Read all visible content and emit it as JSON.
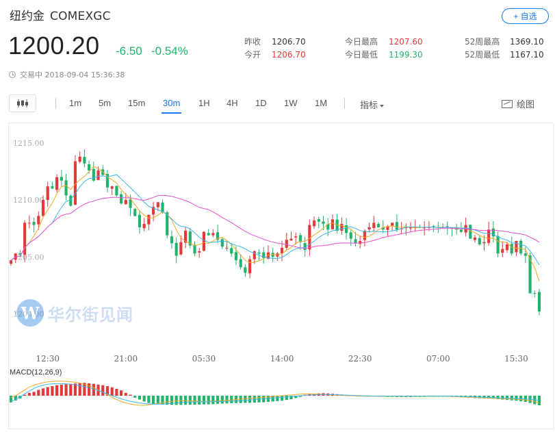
{
  "header": {
    "title": "纽约金",
    "code": "COMEXGC",
    "watch_label": "+ 自选"
  },
  "quote": {
    "price": "1200.20",
    "change": "-6.50",
    "change_pct": "-0.54%",
    "status": "交易中 2018-09-04 15:36:38"
  },
  "stats": [
    {
      "label": "昨收",
      "value": "1206.70",
      "color": "#333333"
    },
    {
      "label": "今开",
      "value": "1206.70",
      "color": "#e23a3a"
    },
    {
      "label": "今日最高",
      "value": "1207.60",
      "color": "#e23a3a"
    },
    {
      "label": "今日最低",
      "value": "1199.30",
      "color": "#21b36b"
    },
    {
      "label": "52周最高",
      "value": "1369.10",
      "color": "#333333"
    },
    {
      "label": "52周最低",
      "value": "1167.10",
      "color": "#333333"
    }
  ],
  "toolbar": {
    "periods": [
      "1m",
      "5m",
      "15m",
      "30m",
      "1H",
      "4H",
      "1D",
      "1W",
      "1M"
    ],
    "active_period": "30m",
    "indicator_label": "指标",
    "draw_label": "绘图"
  },
  "watermark": {
    "logo_letter": "W",
    "text": "华尔街见闻"
  },
  "colors": {
    "up": "#e23a3a",
    "down": "#21b36b",
    "accent": "#1478f0",
    "ma1": "#f5a623",
    "ma2": "#3ab6ea",
    "ma3": "#e94ecb"
  },
  "chart_data": {
    "type": "candlestick",
    "y_ticks": [
      "1215.00",
      "1210.00",
      "1205.00",
      "1200.00"
    ],
    "y_tick_values": [
      1215,
      1210,
      1205,
      1200
    ],
    "ylim": [
      1197.5,
      1216.5
    ],
    "x_ticks": [
      "12:30",
      "21:00",
      "05:30",
      "14:00",
      "22:30",
      "07:00",
      "15:30"
    ],
    "x_tick_index": [
      8,
      25,
      42,
      59,
      76,
      93,
      110
    ],
    "closes": [
      1204.7,
      1205.3,
      1205.2,
      1208.0,
      1208.0,
      1207.8,
      1208.6,
      1210.0,
      1211.2,
      1211.0,
      1212.0,
      1211.7,
      1210.4,
      1209.5,
      1213.4,
      1213.8,
      1213.2,
      1212.6,
      1211.7,
      1212.6,
      1212.2,
      1211.1,
      1211.2,
      1210.4,
      1209.7,
      1210.0,
      1209.3,
      1208.6,
      1207.6,
      1207.9,
      1208.7,
      1209.4,
      1209.8,
      1208.9,
      1206.9,
      1206.2,
      1205.1,
      1206.3,
      1207.3,
      1206.0,
      1205.3,
      1205.5,
      1207.2,
      1206.9,
      1207.1,
      1206.5,
      1205.9,
      1205.8,
      1205.3,
      1204.7,
      1204.1,
      1203.6,
      1204.8,
      1205.5,
      1205.3,
      1204.9,
      1205.4,
      1205.0,
      1205.3,
      1205.8,
      1206.5,
      1206.6,
      1206.8,
      1206.3,
      1205.6,
      1207.8,
      1208.2,
      1208.1,
      1207.9,
      1207.4,
      1208.3,
      1207.3,
      1207.9,
      1207.1,
      1206.6,
      1206.2,
      1206.4,
      1207.3,
      1207.6,
      1208.0,
      1207.6,
      1207.4,
      1207.7,
      1208.0,
      1207.4,
      1207.5,
      1207.6,
      1207.6,
      1207.6,
      1207.6,
      1207.6,
      1207.6,
      1207.6,
      1207.6,
      1207.6,
      1207.6,
      1207.5,
      1207.4,
      1207.2,
      1207.8,
      1206.6,
      1206.7,
      1206.1,
      1206.3,
      1207.4,
      1206.8,
      1205.3,
      1205.7,
      1206.1,
      1205.3,
      1206.4,
      1205.3,
      1205.1,
      1201.8,
      1201.8,
      1200.2
    ],
    "ma_periods": [
      5,
      10,
      30
    ],
    "macd_label": "MACD(12,26,9)",
    "macd_hist": [
      -0.35,
      -0.25,
      -0.15,
      0.05,
      0.15,
      0.2,
      0.3,
      0.38,
      0.45,
      0.5,
      0.55,
      0.58,
      0.6,
      0.62,
      0.64,
      0.66,
      0.67,
      0.65,
      0.62,
      0.58,
      0.55,
      0.5,
      0.44,
      0.36,
      0.28,
      0.15,
      0.05,
      -0.1,
      -0.2,
      -0.3,
      -0.38,
      -0.42,
      -0.45,
      -0.46,
      -0.47,
      -0.47,
      -0.48,
      -0.48,
      -0.47,
      -0.47,
      -0.47,
      -0.46,
      -0.45,
      -0.45,
      -0.44,
      -0.42,
      -0.41,
      -0.4,
      -0.39,
      -0.38,
      -0.38,
      -0.37,
      -0.37,
      -0.36,
      -0.35,
      -0.34,
      -0.32,
      -0.3,
      -0.28,
      -0.26,
      -0.22,
      -0.18,
      -0.12,
      -0.06,
      0.05,
      0.08,
      0.1,
      0.12,
      0.13,
      0.12,
      0.1,
      0.08,
      0.06,
      0.04,
      0.03,
      0.02,
      0.01,
      0.0,
      -0.02,
      -0.03,
      -0.04,
      -0.05,
      -0.06,
      -0.06,
      -0.07,
      -0.07,
      -0.07,
      -0.07,
      -0.06,
      -0.06,
      -0.06,
      -0.05,
      -0.05,
      -0.05,
      -0.05,
      -0.05,
      -0.06,
      -0.07,
      -0.08,
      -0.09,
      -0.1,
      -0.12,
      -0.13,
      -0.14,
      -0.15,
      -0.16,
      -0.18,
      -0.2,
      -0.22,
      -0.24,
      -0.26,
      -0.29,
      -0.32,
      -0.38,
      -0.44,
      -0.5
    ],
    "macd_dif": [
      -0.1,
      0.0,
      0.15,
      0.3,
      0.45,
      0.55,
      0.62,
      0.68,
      0.72,
      0.74,
      0.76,
      0.76,
      0.75,
      0.73,
      0.7,
      0.66,
      0.6,
      0.52,
      0.42,
      0.3,
      0.18,
      0.05,
      -0.08,
      -0.2,
      -0.3,
      -0.38,
      -0.44,
      -0.48,
      -0.5,
      -0.5,
      -0.48,
      -0.44,
      -0.4,
      -0.36,
      -0.32,
      -0.29,
      -0.27,
      -0.26,
      -0.26,
      -0.27,
      -0.28,
      -0.29,
      -0.3,
      -0.3,
      -0.29,
      -0.28,
      -0.26,
      -0.24,
      -0.22,
      -0.2,
      -0.18,
      -0.16,
      -0.14,
      -0.12,
      -0.1,
      -0.08,
      -0.06,
      -0.04,
      -0.02,
      0.0,
      0.02,
      0.04,
      0.06,
      0.08,
      0.1,
      0.1,
      0.09,
      0.08,
      0.06,
      0.05,
      0.04,
      0.03,
      0.02,
      0.01,
      0.0,
      -0.01,
      -0.02,
      -0.03,
      -0.03,
      -0.03,
      -0.03,
      -0.03,
      -0.03,
      -0.03,
      -0.03,
      -0.03,
      -0.03,
      -0.03,
      -0.03,
      -0.03,
      -0.03,
      -0.03,
      -0.03,
      -0.03,
      -0.03,
      -0.03,
      -0.04,
      -0.05,
      -0.06,
      -0.07,
      -0.08,
      -0.09,
      -0.1,
      -0.11,
      -0.12,
      -0.13,
      -0.14,
      -0.15,
      -0.16,
      -0.17,
      -0.18,
      -0.2,
      -0.22,
      -0.25,
      -0.3,
      -0.38
    ],
    "macd_dea": [
      -0.3,
      -0.2,
      -0.05,
      0.1,
      0.25,
      0.38,
      0.48,
      0.55,
      0.6,
      0.62,
      0.63,
      0.63,
      0.62,
      0.6,
      0.57,
      0.53,
      0.48,
      0.42,
      0.35,
      0.27,
      0.18,
      0.09,
      0.0,
      -0.08,
      -0.16,
      -0.23,
      -0.29,
      -0.34,
      -0.38,
      -0.41,
      -0.43,
      -0.44,
      -0.44,
      -0.43,
      -0.42,
      -0.4,
      -0.38,
      -0.36,
      -0.34,
      -0.33,
      -0.32,
      -0.31,
      -0.31,
      -0.31,
      -0.31,
      -0.3,
      -0.3,
      -0.29,
      -0.28,
      -0.27,
      -0.26,
      -0.24,
      -0.22,
      -0.2,
      -0.18,
      -0.16,
      -0.14,
      -0.12,
      -0.1,
      -0.08,
      -0.06,
      -0.04,
      -0.02,
      0.0,
      0.02,
      0.04,
      0.05,
      0.06,
      0.06,
      0.06,
      0.05,
      0.05,
      0.04,
      0.03,
      0.02,
      0.01,
      0.0,
      -0.01,
      -0.01,
      -0.02,
      -0.02,
      -0.02,
      -0.02,
      -0.02,
      -0.02,
      -0.02,
      -0.02,
      -0.02,
      -0.02,
      -0.02,
      -0.02,
      -0.02,
      -0.02,
      -0.02,
      -0.02,
      -0.02,
      -0.03,
      -0.03,
      -0.04,
      -0.05,
      -0.05,
      -0.06,
      -0.07,
      -0.08,
      -0.09,
      -0.1,
      -0.11,
      -0.12,
      -0.13,
      -0.14,
      -0.15,
      -0.16,
      -0.17,
      -0.19,
      -0.21,
      -0.24
    ]
  }
}
